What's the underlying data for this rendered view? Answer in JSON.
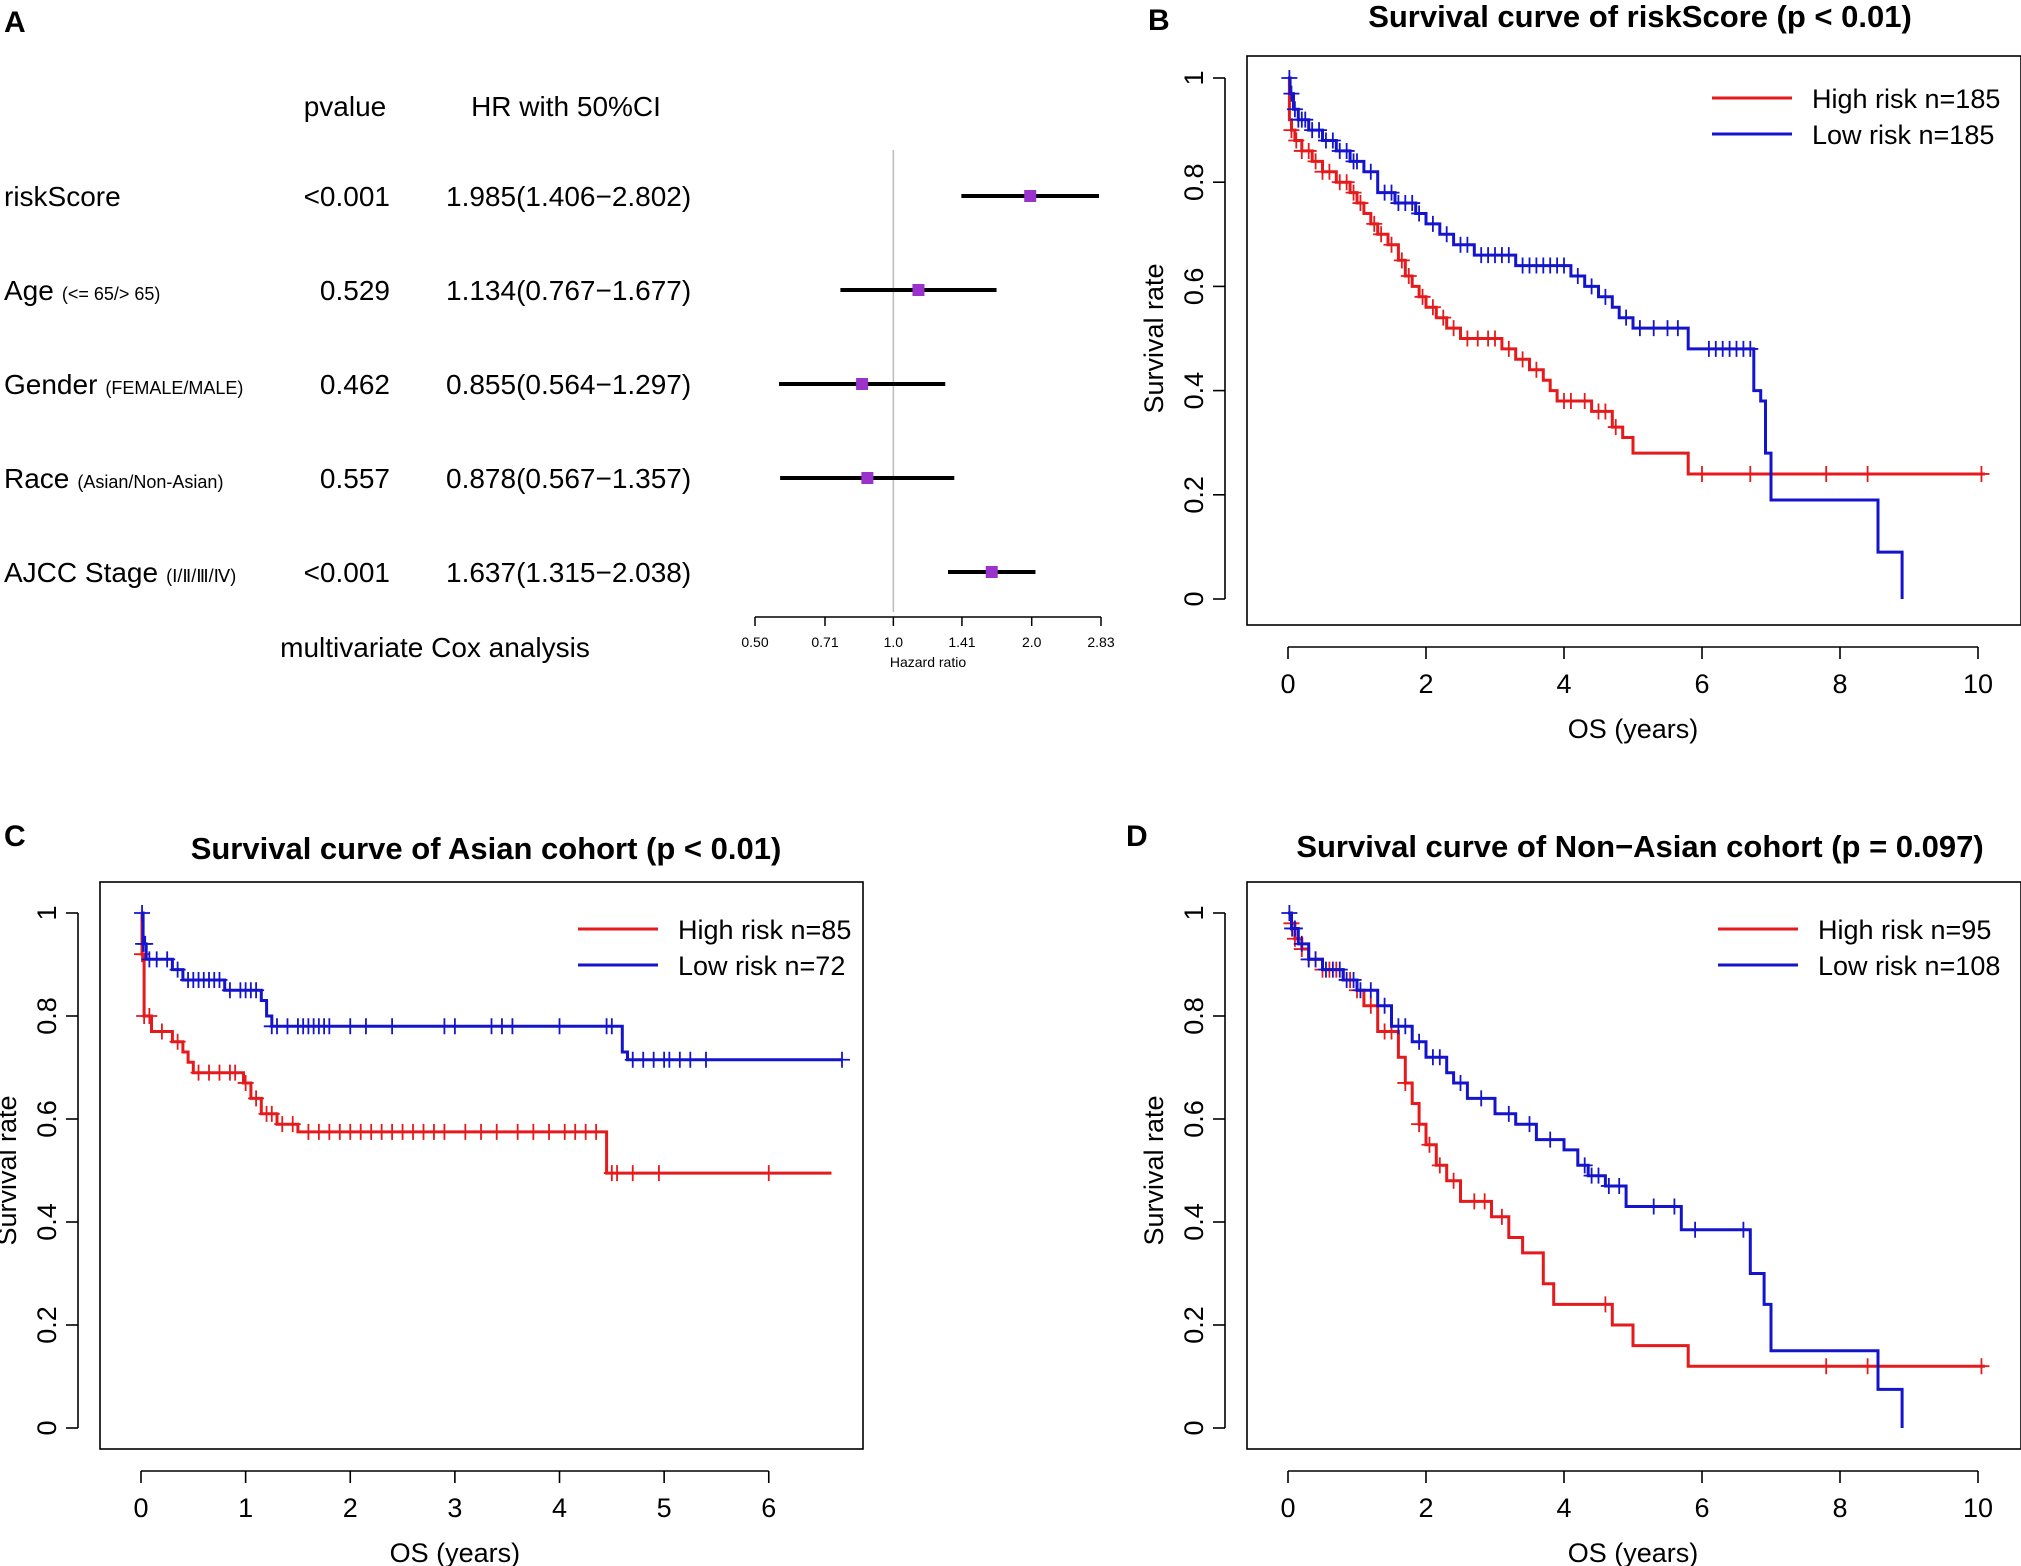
{
  "panel_labels": {
    "a": "A",
    "b": "B",
    "c": "C",
    "d": "D"
  },
  "forest": {
    "header_pvalue": "pvalue",
    "header_hr": "HR with 50%CI",
    "caption": "multivariate Cox analysis",
    "rows": [
      {
        "name": "riskScore",
        "sub": "",
        "pvalue": "<0.001",
        "hr_text": "1.985(1.406−2.802)"
      },
      {
        "name": "Age",
        "sub": "(<= 65/> 65)",
        "pvalue": "0.529",
        "hr_text": "1.134(0.767−1.677)"
      },
      {
        "name": "Gender",
        "sub": "(FEMALE/MALE)",
        "pvalue": "0.462",
        "hr_text": "0.855(0.564−1.297)"
      },
      {
        "name": "Race",
        "sub": "(Asian/Non-Asian)",
        "pvalue": "0.557",
        "hr_text": "0.878(0.567−1.357)"
      },
      {
        "name": "AJCC Stage",
        "sub": "(Ⅰ/Ⅱ/Ⅲ/Ⅳ)",
        "pvalue": "<0.001",
        "hr_text": "1.637(1.315−2.038)"
      }
    ]
  },
  "colors": {
    "high": "#e41a1c",
    "low": "#1414cc",
    "marker": "#9933cc",
    "refline": "#bbbbbb"
  },
  "chart_data": [
    {
      "type": "forest",
      "xlabel": "Hazard ratio",
      "log_scale": true,
      "xlim": [
        0.5,
        2.83
      ],
      "ticks": [
        0.5,
        0.71,
        1.0,
        1.41,
        2.0,
        2.83
      ],
      "tick_labels": [
        "0.50",
        "0.71",
        "1.0",
        "1.41",
        "2.0",
        "2.83"
      ],
      "reference": 1.0,
      "rows": [
        {
          "name": "riskScore",
          "hr": 1.985,
          "lo": 1.406,
          "hi": 2.802
        },
        {
          "name": "Age",
          "hr": 1.134,
          "lo": 0.767,
          "hi": 1.677
        },
        {
          "name": "Gender",
          "hr": 0.855,
          "lo": 0.564,
          "hi": 1.297
        },
        {
          "name": "Race",
          "hr": 0.878,
          "lo": 0.567,
          "hi": 1.357
        },
        {
          "name": "AJCC Stage",
          "hr": 1.637,
          "lo": 1.315,
          "hi": 2.038
        }
      ]
    },
    {
      "type": "line",
      "title": "Survival curve of riskScore (p < 0.01)",
      "xlabel": "OS (years)",
      "ylabel": "Survival rate",
      "xlim": [
        0,
        10
      ],
      "ylim": [
        0,
        1
      ],
      "xticks": [
        0,
        2,
        4,
        6,
        8,
        10
      ],
      "yticks": [
        0.0,
        0.2,
        0.4,
        0.6,
        0.8,
        1.0
      ],
      "legend_position": "top-right",
      "series": [
        {
          "name": "High risk n=185",
          "color_key": "high",
          "steps": [
            [
              0,
              1.0
            ],
            [
              0.02,
              0.92
            ],
            [
              0.05,
              0.9
            ],
            [
              0.1,
              0.88
            ],
            [
              0.2,
              0.86
            ],
            [
              0.35,
              0.84
            ],
            [
              0.5,
              0.82
            ],
            [
              0.7,
              0.8
            ],
            [
              0.9,
              0.78
            ],
            [
              1.0,
              0.76
            ],
            [
              1.1,
              0.74
            ],
            [
              1.2,
              0.72
            ],
            [
              1.3,
              0.7
            ],
            [
              1.45,
              0.68
            ],
            [
              1.6,
              0.65
            ],
            [
              1.7,
              0.62
            ],
            [
              1.8,
              0.6
            ],
            [
              1.9,
              0.58
            ],
            [
              2.0,
              0.56
            ],
            [
              2.15,
              0.54
            ],
            [
              2.3,
              0.52
            ],
            [
              2.5,
              0.5
            ],
            [
              3.1,
              0.48
            ],
            [
              3.3,
              0.46
            ],
            [
              3.5,
              0.44
            ],
            [
              3.7,
              0.42
            ],
            [
              3.8,
              0.4
            ],
            [
              3.9,
              0.38
            ],
            [
              4.4,
              0.36
            ],
            [
              4.7,
              0.33
            ],
            [
              4.85,
              0.31
            ],
            [
              5.0,
              0.28
            ],
            [
              5.8,
              0.24
            ],
            [
              10.1,
              0.24
            ]
          ],
          "censor": [
            0.05,
            0.12,
            0.2,
            0.3,
            0.4,
            0.5,
            0.6,
            0.75,
            0.85,
            0.95,
            1.05,
            1.25,
            1.35,
            1.5,
            1.65,
            1.75,
            1.95,
            2.1,
            2.25,
            2.4,
            2.6,
            2.75,
            2.9,
            3.0,
            3.2,
            3.4,
            3.6,
            4.0,
            4.1,
            4.3,
            4.5,
            4.6,
            4.75,
            6.0,
            6.7,
            7.8,
            8.4,
            10.05
          ]
        },
        {
          "name": "Low risk n=185",
          "color_key": "low",
          "steps": [
            [
              0,
              1.0
            ],
            [
              0.03,
              0.97
            ],
            [
              0.08,
              0.94
            ],
            [
              0.15,
              0.92
            ],
            [
              0.3,
              0.9
            ],
            [
              0.5,
              0.88
            ],
            [
              0.7,
              0.86
            ],
            [
              0.9,
              0.84
            ],
            [
              1.1,
              0.82
            ],
            [
              1.3,
              0.78
            ],
            [
              1.55,
              0.76
            ],
            [
              1.85,
              0.74
            ],
            [
              2.0,
              0.72
            ],
            [
              2.2,
              0.7
            ],
            [
              2.4,
              0.68
            ],
            [
              2.7,
              0.66
            ],
            [
              3.3,
              0.64
            ],
            [
              4.1,
              0.62
            ],
            [
              4.3,
              0.6
            ],
            [
              4.5,
              0.58
            ],
            [
              4.7,
              0.56
            ],
            [
              4.8,
              0.54
            ],
            [
              5.0,
              0.52
            ],
            [
              5.8,
              0.48
            ],
            [
              6.75,
              0.4
            ],
            [
              6.85,
              0.38
            ],
            [
              6.92,
              0.28
            ],
            [
              7.0,
              0.19
            ],
            [
              8.55,
              0.09
            ],
            [
              8.9,
              0.0
            ]
          ],
          "censor": [
            0.02,
            0.05,
            0.1,
            0.15,
            0.2,
            0.25,
            0.35,
            0.45,
            0.55,
            0.65,
            0.75,
            0.85,
            0.95,
            1.0,
            1.2,
            1.4,
            1.5,
            1.6,
            1.7,
            1.8,
            1.9,
            2.1,
            2.3,
            2.5,
            2.6,
            2.8,
            2.9,
            3.0,
            3.1,
            3.2,
            3.4,
            3.5,
            3.6,
            3.7,
            3.8,
            3.9,
            4.0,
            4.2,
            4.4,
            4.6,
            4.9,
            5.1,
            5.3,
            5.5,
            5.65,
            6.1,
            6.2,
            6.3,
            6.4,
            6.5,
            6.6,
            6.7
          ]
        }
      ]
    },
    {
      "type": "line",
      "title": "Survival curve of Asian cohort (p < 0.01)",
      "xlabel": "OS (years)",
      "ylabel": "Survival rate",
      "xlim": [
        0,
        6.7
      ],
      "ylim": [
        0,
        1
      ],
      "xticks": [
        0,
        1,
        2,
        3,
        4,
        5,
        6
      ],
      "yticks": [
        0.0,
        0.2,
        0.4,
        0.6,
        0.8,
        1.0
      ],
      "legend_position": "top-right",
      "series": [
        {
          "name": "High risk n=85",
          "color_key": "high",
          "steps": [
            [
              0,
              1.0
            ],
            [
              0.01,
              0.92
            ],
            [
              0.03,
              0.8
            ],
            [
              0.1,
              0.77
            ],
            [
              0.3,
              0.75
            ],
            [
              0.4,
              0.73
            ],
            [
              0.45,
              0.71
            ],
            [
              0.5,
              0.69
            ],
            [
              0.98,
              0.67
            ],
            [
              1.05,
              0.64
            ],
            [
              1.15,
              0.61
            ],
            [
              1.3,
              0.59
            ],
            [
              1.5,
              0.575
            ],
            [
              4.45,
              0.495
            ],
            [
              6.6,
              0.495
            ]
          ],
          "censor": [
            0.01,
            0.03,
            0.08,
            0.2,
            0.35,
            0.55,
            0.65,
            0.75,
            0.85,
            0.9,
            1.0,
            1.1,
            1.2,
            1.25,
            1.35,
            1.45,
            1.6,
            1.7,
            1.8,
            1.9,
            2.0,
            2.1,
            2.2,
            2.3,
            2.4,
            2.5,
            2.6,
            2.7,
            2.8,
            2.9,
            3.1,
            3.25,
            3.4,
            3.6,
            3.75,
            3.9,
            4.05,
            4.15,
            4.25,
            4.35,
            4.5,
            4.55,
            4.7,
            4.95,
            6.0
          ]
        },
        {
          "name": "Low risk n=72",
          "color_key": "low",
          "steps": [
            [
              0,
              1.0
            ],
            [
              0.02,
              0.94
            ],
            [
              0.05,
              0.91
            ],
            [
              0.3,
              0.89
            ],
            [
              0.4,
              0.87
            ],
            [
              0.8,
              0.85
            ],
            [
              1.15,
              0.83
            ],
            [
              1.2,
              0.8
            ],
            [
              1.25,
              0.78
            ],
            [
              4.6,
              0.73
            ],
            [
              4.65,
              0.715
            ],
            [
              6.7,
              0.715
            ]
          ],
          "censor": [
            0.01,
            0.02,
            0.04,
            0.08,
            0.15,
            0.25,
            0.35,
            0.45,
            0.5,
            0.55,
            0.6,
            0.65,
            0.7,
            0.75,
            0.85,
            0.95,
            1.0,
            1.05,
            1.1,
            1.25,
            1.3,
            1.4,
            1.5,
            1.55,
            1.6,
            1.65,
            1.7,
            1.75,
            1.8,
            2.0,
            2.15,
            2.4,
            2.9,
            3.0,
            3.35,
            3.45,
            3.55,
            4.0,
            4.45,
            4.5,
            4.7,
            4.8,
            4.9,
            5.0,
            5.05,
            5.15,
            5.25,
            5.4,
            6.7
          ]
        }
      ]
    },
    {
      "type": "line",
      "title": "Survival curve of Non−Asian cohort (p = 0.097)",
      "xlabel": "OS (years)",
      "ylabel": "Survival rate",
      "xlim": [
        0,
        10
      ],
      "ylim": [
        0,
        1
      ],
      "xticks": [
        0,
        2,
        4,
        6,
        8,
        10
      ],
      "yticks": [
        0.0,
        0.2,
        0.4,
        0.6,
        0.8,
        1.0
      ],
      "legend_position": "top-right",
      "series": [
        {
          "name": "High risk n=95",
          "color_key": "high",
          "steps": [
            [
              0,
              1.0
            ],
            [
              0.05,
              0.98
            ],
            [
              0.1,
              0.95
            ],
            [
              0.2,
              0.93
            ],
            [
              0.3,
              0.91
            ],
            [
              0.5,
              0.89
            ],
            [
              0.8,
              0.87
            ],
            [
              1.0,
              0.85
            ],
            [
              1.1,
              0.82
            ],
            [
              1.3,
              0.77
            ],
            [
              1.6,
              0.72
            ],
            [
              1.7,
              0.67
            ],
            [
              1.8,
              0.63
            ],
            [
              1.9,
              0.59
            ],
            [
              2.0,
              0.55
            ],
            [
              2.15,
              0.51
            ],
            [
              2.3,
              0.48
            ],
            [
              2.5,
              0.44
            ],
            [
              2.95,
              0.41
            ],
            [
              3.2,
              0.37
            ],
            [
              3.4,
              0.34
            ],
            [
              3.7,
              0.28
            ],
            [
              3.85,
              0.24
            ],
            [
              4.7,
              0.2
            ],
            [
              5.0,
              0.16
            ],
            [
              5.8,
              0.12
            ],
            [
              10.1,
              0.12
            ]
          ],
          "censor": [
            0.05,
            0.1,
            0.2,
            0.3,
            0.4,
            0.5,
            0.6,
            0.7,
            0.9,
            1.0,
            1.2,
            1.4,
            1.5,
            1.7,
            1.9,
            2.05,
            2.2,
            2.4,
            2.7,
            2.85,
            3.1,
            4.6,
            7.8,
            8.4,
            10.05
          ]
        },
        {
          "name": "Low risk n=108",
          "color_key": "low",
          "steps": [
            [
              0,
              1.0
            ],
            [
              0.05,
              0.97
            ],
            [
              0.15,
              0.94
            ],
            [
              0.3,
              0.91
            ],
            [
              0.5,
              0.89
            ],
            [
              0.8,
              0.87
            ],
            [
              1.0,
              0.85
            ],
            [
              1.3,
              0.82
            ],
            [
              1.5,
              0.78
            ],
            [
              1.8,
              0.75
            ],
            [
              2.0,
              0.72
            ],
            [
              2.3,
              0.69
            ],
            [
              2.4,
              0.67
            ],
            [
              2.6,
              0.64
            ],
            [
              3.0,
              0.61
            ],
            [
              3.3,
              0.59
            ],
            [
              3.6,
              0.56
            ],
            [
              4.0,
              0.54
            ],
            [
              4.2,
              0.51
            ],
            [
              4.35,
              0.49
            ],
            [
              4.6,
              0.47
            ],
            [
              4.9,
              0.43
            ],
            [
              5.7,
              0.385
            ],
            [
              6.7,
              0.3
            ],
            [
              6.9,
              0.24
            ],
            [
              7.0,
              0.15
            ],
            [
              8.55,
              0.075
            ],
            [
              8.9,
              0.0
            ]
          ],
          "censor": [
            0.02,
            0.06,
            0.1,
            0.2,
            0.3,
            0.4,
            0.55,
            0.65,
            0.75,
            0.85,
            0.95,
            1.05,
            1.2,
            1.4,
            1.6,
            1.7,
            1.9,
            2.1,
            2.2,
            2.5,
            2.8,
            3.2,
            3.5,
            3.8,
            4.3,
            4.4,
            4.5,
            4.65,
            4.8,
            5.3,
            5.6,
            5.9,
            6.6
          ]
        }
      ]
    }
  ]
}
